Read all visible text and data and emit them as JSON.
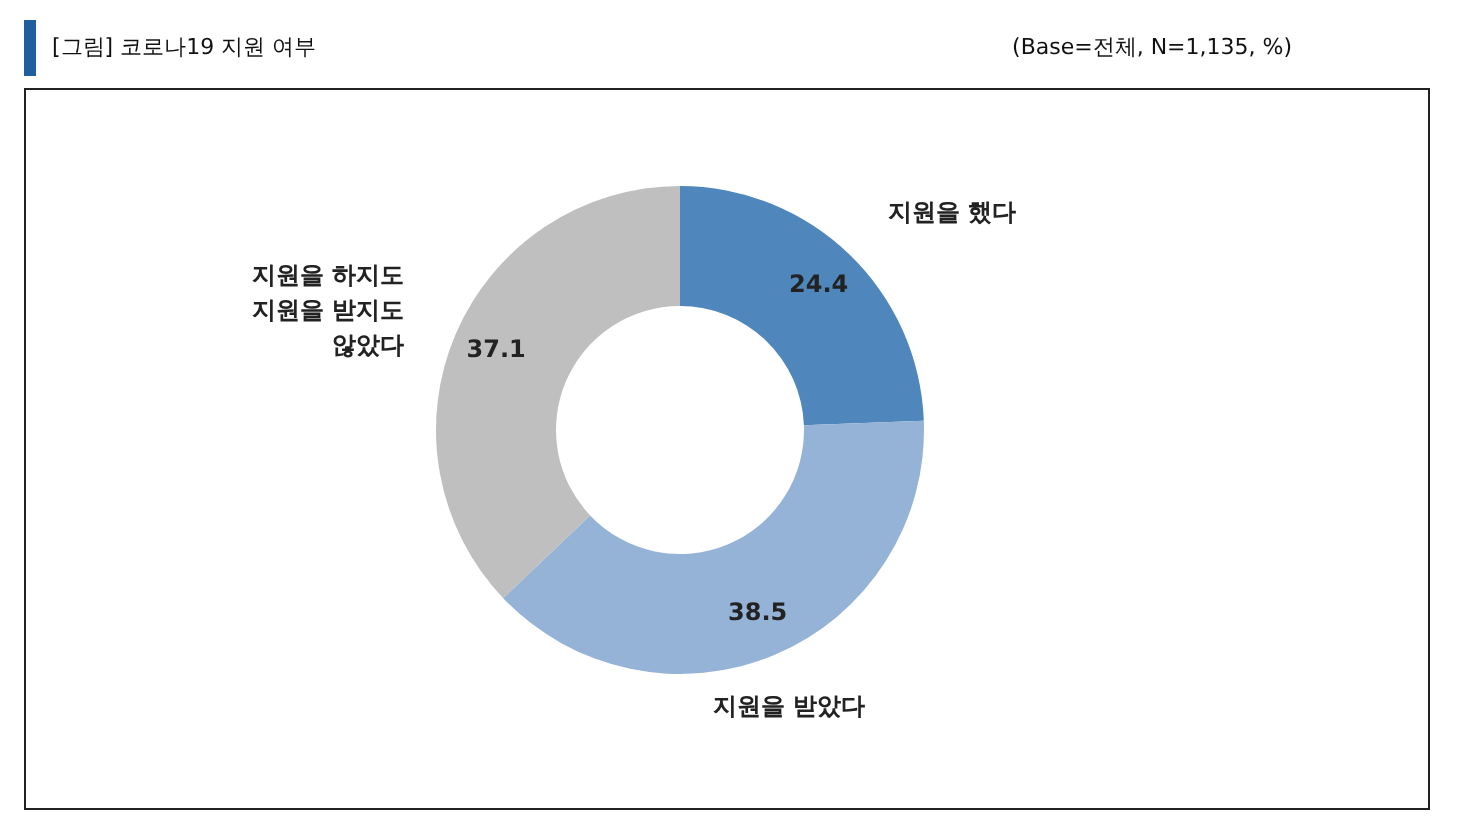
{
  "chart_data": {
    "type": "donut",
    "title": "[그림] 코로나19 지원 여부",
    "annotations": [
      "(Base=전체, N=1,135, %)"
    ],
    "categories": [
      "지원을 했다",
      "지원을 받았다",
      "지원을 하지도\n지원을 받지도\n않았다"
    ],
    "values": [
      24.4,
      38.5,
      37.1
    ],
    "colors": [
      "#4f87bd",
      "#95b3d7",
      "#bfbfbf"
    ],
    "data_labels": true,
    "legend": false
  }
}
